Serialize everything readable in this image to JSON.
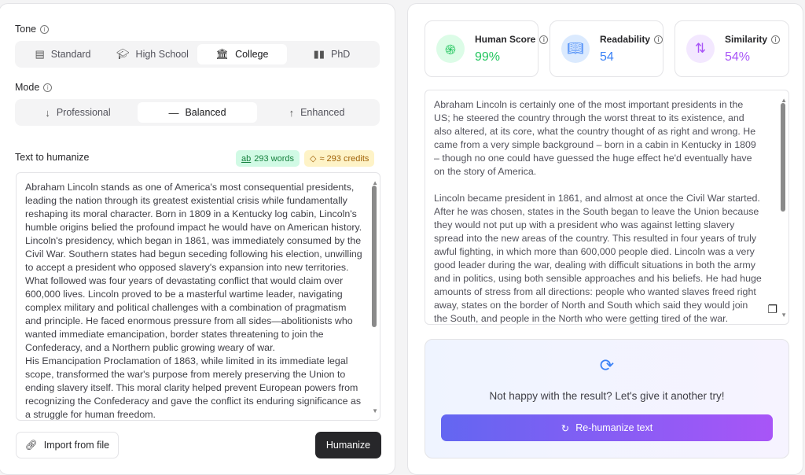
{
  "tone": {
    "label": "Tone",
    "options": [
      {
        "label": "Standard",
        "icon": "document-icon"
      },
      {
        "label": "High School",
        "icon": "graduation-cap-icon"
      },
      {
        "label": "College",
        "icon": "building-columns-icon"
      },
      {
        "label": "PhD",
        "icon": "book-icon"
      }
    ],
    "selected": "College"
  },
  "mode": {
    "label": "Mode",
    "options": [
      {
        "label": "Professional",
        "icon": "arrow-down-icon"
      },
      {
        "label": "Balanced",
        "icon": "minus-icon"
      },
      {
        "label": "Enhanced",
        "icon": "arrow-up-icon"
      }
    ],
    "selected": "Balanced"
  },
  "input": {
    "label": "Text to humanize",
    "words_badge": "293 words",
    "words_icon": "ab",
    "credits_badge": "≈ 293 credits",
    "paragraphs": [
      "Abraham Lincoln stands as one of America's most consequential presidents, leading the nation through its greatest existential crisis while fundamentally reshaping its moral character. Born in 1809 in a Kentucky log cabin, Lincoln's humble origins belied the profound impact he would have on American history. Lincoln's presidency, which began in 1861, was immediately consumed by the Civil War. Southern states had begun seceding following his election, unwilling to accept a president who opposed slavery's expansion into new territories. What followed was four years of devastating conflict that would claim over 600,000 lives. Lincoln proved to be a masterful wartime leader, navigating complex military and political challenges with a combination of pragmatism and principle. He faced enormous pressure from all sides—abolitionists who wanted immediate emancipation, border states threatening to join the Confederacy, and a Northern public growing weary of war.",
      "His Emancipation Proclamation of 1863, while limited in its immediate legal scope, transformed the war's purpose from merely preserving the Union to ending slavery itself. This moral clarity helped prevent European powers from recognizing the Confederacy and gave the conflict its enduring significance as a struggle for human freedom."
    ]
  },
  "actions": {
    "import": "Import from file",
    "humanize": "Humanize"
  },
  "stats": [
    {
      "title": "Human Score",
      "value": "99%",
      "color": "#22c55e",
      "icon": "fingerprint-icon"
    },
    {
      "title": "Readability",
      "value": "54",
      "color": "#3b82f6",
      "icon": "book-open-icon"
    },
    {
      "title": "Similarity",
      "value": "54%",
      "color": "#a855f7",
      "icon": "git-compare-icon"
    }
  ],
  "output": {
    "paragraphs": [
      "Abraham Lincoln is certainly one of the most important presidents in the US; he steered the country through the worst threat to its existence, and also altered, at its core, what the country thought of as right and wrong. He came from a very simple background – born in a cabin in Kentucky in 1809 – though no one could have guessed the huge effect he'd eventually have on the story of America.",
      "Lincoln became president in 1861, and almost at once the Civil War started. After he was chosen, states in the South began to leave the Union because they would not put up with a president who was against letting slavery spread into the new areas of the country. This resulted in four years of truly awful fighting, in which more than 600,000 people died. Lincoln was a very good leader during the war, dealing with difficult situations in both the army and in politics, using both sensible approaches and his beliefs. He had huge amounts of stress from all directions: people who wanted slaves freed right away, states on the border of North and South which said they would join the South, and people in the North who were getting tired of the war."
    ]
  },
  "retry": {
    "message": "Not happy with the result? Let's give it another try!",
    "button": "Re-humanize text"
  }
}
